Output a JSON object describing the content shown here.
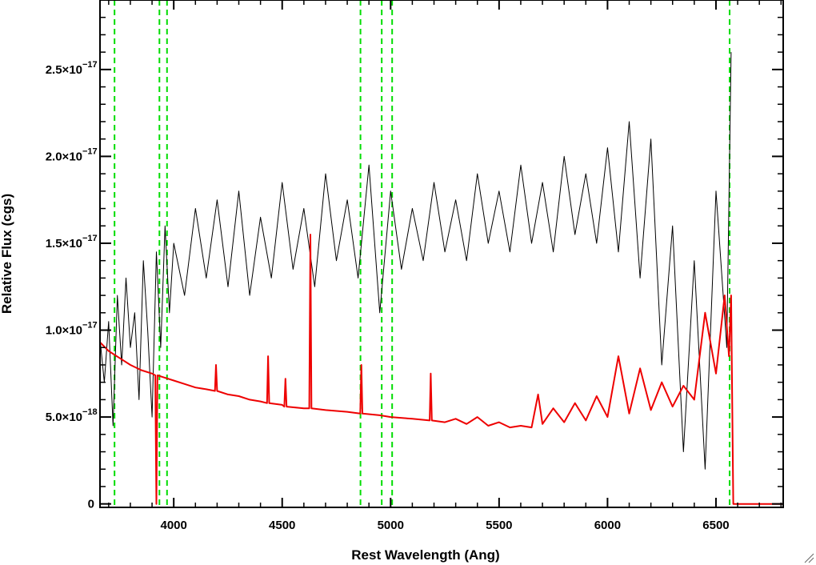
{
  "chart_data": {
    "type": "line",
    "title": "",
    "xlabel": "Rest Wavelength (Ang)",
    "ylabel": "Relative Flux (cgs)",
    "xlim": [
      3660,
      6810
    ],
    "ylim": [
      -2e-19,
      2.9e-17
    ],
    "xticks": [
      4000,
      4500,
      5000,
      5500,
      6000,
      6500
    ],
    "xtick_labels": [
      "4000",
      "4500",
      "5000",
      "5500",
      "6000",
      "6500"
    ],
    "yticks": [
      {
        "value": 0,
        "mantissa": "0",
        "exponent": ""
      },
      {
        "value": 5e-18,
        "mantissa": "5.0×10",
        "exponent": "−18"
      },
      {
        "value": 1e-17,
        "mantissa": "1.0×10",
        "exponent": "−17"
      },
      {
        "value": 1.5e-17,
        "mantissa": "1.5×10",
        "exponent": "−17"
      },
      {
        "value": 2e-17,
        "mantissa": "2.0×10",
        "exponent": "−17"
      },
      {
        "value": 2.5e-17,
        "mantissa": "2.5×10",
        "exponent": "−17"
      }
    ],
    "vertical_lines": [
      {
        "x": 3727,
        "style": "dashed",
        "color": "#00dd00"
      },
      {
        "x": 3934,
        "style": "dashed",
        "color": "#00dd00"
      },
      {
        "x": 3969,
        "style": "dashed",
        "color": "#00dd00"
      },
      {
        "x": 4861,
        "style": "dashed",
        "color": "#00dd00"
      },
      {
        "x": 4959,
        "style": "dashed",
        "color": "#00dd00"
      },
      {
        "x": 5007,
        "style": "dashed",
        "color": "#00dd00"
      },
      {
        "x": 6563,
        "style": "dashed",
        "color": "#00dd00"
      }
    ],
    "series": [
      {
        "role": "observed spectrum",
        "color": "#000000",
        "note": "noisy flux, sampled approximation",
        "x": [
          3660,
          3680,
          3700,
          3720,
          3740,
          3760,
          3780,
          3800,
          3820,
          3840,
          3860,
          3880,
          3900,
          3920,
          3940,
          3960,
          3980,
          4000,
          4050,
          4100,
          4150,
          4200,
          4250,
          4300,
          4350,
          4400,
          4450,
          4500,
          4550,
          4600,
          4650,
          4700,
          4750,
          4800,
          4850,
          4900,
          4950,
          5000,
          5050,
          5100,
          5150,
          5200,
          5250,
          5300,
          5350,
          5400,
          5450,
          5500,
          5550,
          5600,
          5650,
          5700,
          5750,
          5800,
          5850,
          5900,
          5950,
          6000,
          6050,
          6100,
          6150,
          6200,
          6250,
          6300,
          6350,
          6400,
          6450,
          6500,
          6550,
          6570
        ],
        "y": [
          9.5e-18,
          7e-18,
          1.05e-17,
          4.5e-18,
          1.2e-17,
          8e-18,
          1.3e-17,
          9e-18,
          1.1e-17,
          6e-18,
          1.4e-17,
          1e-17,
          5e-18,
          1.45e-17,
          9e-18,
          1.6e-17,
          1.1e-17,
          1.5e-17,
          1.2e-17,
          1.7e-17,
          1.3e-17,
          1.75e-17,
          1.25e-17,
          1.8e-17,
          1.2e-17,
          1.65e-17,
          1.3e-17,
          1.85e-17,
          1.35e-17,
          1.7e-17,
          1.25e-17,
          1.9e-17,
          1.4e-17,
          1.75e-17,
          1.3e-17,
          1.95e-17,
          1.1e-17,
          1.8e-17,
          1.35e-17,
          1.7e-17,
          1.4e-17,
          1.85e-17,
          1.45e-17,
          1.75e-17,
          1.4e-17,
          1.9e-17,
          1.5e-17,
          1.8e-17,
          1.45e-17,
          1.95e-17,
          1.5e-17,
          1.85e-17,
          1.45e-17,
          2e-17,
          1.55e-17,
          1.9e-17,
          1.5e-17,
          2.05e-17,
          1.45e-17,
          2.2e-17,
          1.3e-17,
          2.1e-17,
          8e-18,
          1.6e-17,
          3e-18,
          1.4e-17,
          2e-18,
          1.8e-17,
          9e-18,
          2.6e-17
        ]
      },
      {
        "role": "model / error spectrum",
        "color": "#ee0000",
        "note": "smooth continuum with emission spikes, sampled approximation",
        "x": [
          3660,
          3700,
          3750,
          3800,
          3850,
          3900,
          3915,
          3920,
          3925,
          3950,
          4000,
          4050,
          4100,
          4150,
          4190,
          4195,
          4200,
          4250,
          4300,
          4350,
          4400,
          4430,
          4435,
          4440,
          4500,
          4510,
          4515,
          4520,
          4600,
          4625,
          4630,
          4635,
          4700,
          4800,
          4860,
          4865,
          4870,
          4950,
          5000,
          5100,
          5180,
          5185,
          5190,
          5250,
          5300,
          5350,
          5400,
          5450,
          5500,
          5550,
          5600,
          5650,
          5680,
          5700,
          5750,
          5800,
          5850,
          5900,
          5950,
          6000,
          6050,
          6100,
          6150,
          6200,
          6250,
          6300,
          6350,
          6400,
          6450,
          6500,
          6540,
          6560,
          6570,
          6580,
          6600,
          6810
        ],
        "y": [
          9.3e-18,
          8.8e-18,
          8.4e-18,
          8e-18,
          7.7e-18,
          7.5e-18,
          7.4e-18,
          0.0,
          7.4e-18,
          7.3e-18,
          7.1e-18,
          6.9e-18,
          6.7e-18,
          6.6e-18,
          6.5e-18,
          8e-18,
          6.5e-18,
          6.3e-18,
          6.2e-18,
          6e-18,
          5.9e-18,
          5.8e-18,
          8.5e-18,
          5.8e-18,
          5.7e-18,
          5.6e-18,
          7.2e-18,
          5.6e-18,
          5.5e-18,
          5.5e-18,
          1.55e-17,
          5.5e-18,
          5.4e-18,
          5.3e-18,
          5.2e-18,
          8e-18,
          5.2e-18,
          5.1e-18,
          5e-18,
          4.9e-18,
          4.8e-18,
          7.5e-18,
          4.8e-18,
          4.7e-18,
          4.9e-18,
          4.6e-18,
          5e-18,
          4.5e-18,
          4.7e-18,
          4.4e-18,
          4.5e-18,
          4.4e-18,
          6.3e-18,
          4.6e-18,
          5.5e-18,
          4.7e-18,
          5.8e-18,
          4.8e-18,
          6.2e-18,
          5e-18,
          8.5e-18,
          5.2e-18,
          7.8e-18,
          5.4e-18,
          7e-18,
          5.6e-18,
          6.8e-18,
          6e-18,
          1.1e-17,
          7.5e-18,
          1.2e-17,
          8.5e-18,
          1.2e-17,
          0.0,
          0.0,
          0.0
        ]
      }
    ],
    "grid": false,
    "legend": "none"
  },
  "ui": {
    "resize_grip_icon": "resize-grip-icon"
  }
}
